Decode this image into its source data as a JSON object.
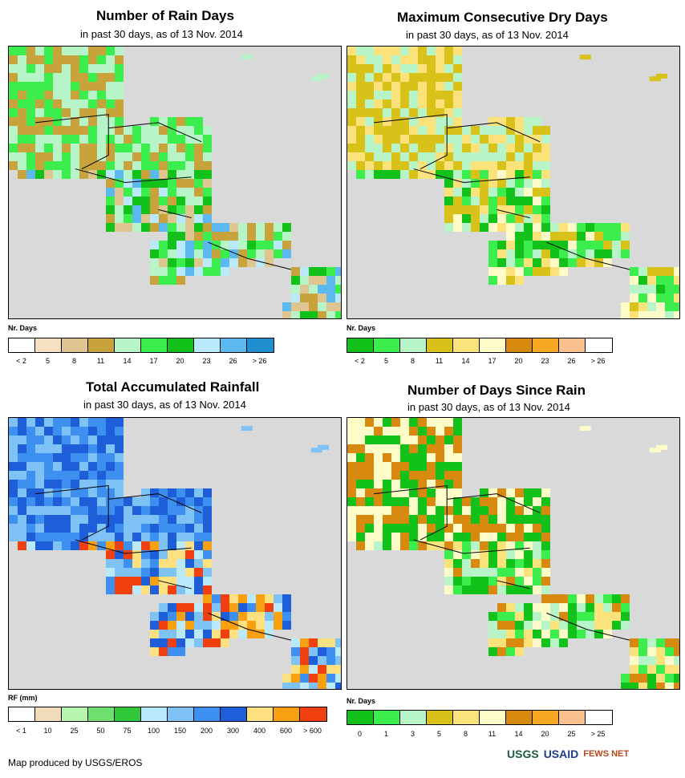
{
  "panels": [
    {
      "id": "rain-days",
      "title": "Number of Rain Days",
      "subtitle": "in past 30 days, as of 13 Nov. 2014",
      "legend_title": "Nr. Days",
      "legend_labels": [
        "< 2",
        "5",
        "8",
        "11",
        "14",
        "17",
        "20",
        "23",
        "26",
        "> 26"
      ],
      "legend_colors": [
        "#ffffff",
        "#f5e1c0",
        "#dfc58f",
        "#c8a33c",
        "#b7f5c8",
        "#3ced4e",
        "#12c21a",
        "#b9e9fb",
        "#5bb9ef",
        "#1f8fd0"
      ],
      "palette": [
        "#c8a33c",
        "#b7f5c8",
        "#3ced4e",
        "#12c21a",
        "#5bb9ef",
        "#b9e9fb",
        "#dfc58f"
      ]
    },
    {
      "id": "dry-days",
      "title": "Maximum Consecutive Dry Days",
      "subtitle": "in past 30 days, as of 13 Nov. 2014",
      "legend_title": "Nr. Days",
      "legend_labels": [
        "< 2",
        "5",
        "8",
        "11",
        "14",
        "17",
        "20",
        "23",
        "26",
        "> 26"
      ],
      "legend_colors": [
        "#12c21a",
        "#3ced4e",
        "#b7f5c8",
        "#d8c21a",
        "#fbe27a",
        "#fdfbc8",
        "#d88a10",
        "#f8a820",
        "#fac090",
        "#ffffff"
      ],
      "palette": [
        "#fbe27a",
        "#d8c21a",
        "#b7f5c8",
        "#3ced4e",
        "#12c21a",
        "#fdfbc8"
      ]
    },
    {
      "id": "rainfall",
      "title": "Total Accumulated Rainfall",
      "subtitle": "in past 30 days, as of 13 Nov. 2014",
      "legend_title": "RF (mm)",
      "legend_labels": [
        "< 1",
        "10",
        "25",
        "50",
        "75",
        "100",
        "150",
        "200",
        "300",
        "400",
        "600",
        "> 600"
      ],
      "legend_colors": [
        "#ffffff",
        "#f0dcb8",
        "#b7f5b0",
        "#6fe070",
        "#30c838",
        "#b9e9fb",
        "#7fc2f5",
        "#3d8ff0",
        "#1e5ed8",
        "#fde080",
        "#f8a010",
        "#f04010"
      ],
      "palette": [
        "#3d8ff0",
        "#7fc2f5",
        "#1e5ed8",
        "#b9e9fb",
        "#fde080",
        "#f8a010",
        "#f04010"
      ]
    },
    {
      "id": "days-since-rain",
      "title": "Number of Days Since Rain",
      "subtitle": "in past 30 days, as of 13 Nov. 2014",
      "legend_title": "Nr. Days",
      "legend_labels": [
        "0",
        "1",
        "3",
        "5",
        "8",
        "11",
        "14",
        "20",
        "25",
        "> 25"
      ],
      "legend_colors": [
        "#12c21a",
        "#3ced4e",
        "#b7f5c8",
        "#d8c21a",
        "#fbe27a",
        "#fdfbc8",
        "#d88a10",
        "#f8a820",
        "#fac090",
        "#ffffff"
      ],
      "palette": [
        "#d88a10",
        "#fdfbc8",
        "#12c21a",
        "#3ced4e",
        "#fbe27a",
        "#b7f5c8"
      ]
    }
  ],
  "footer": "Map produced by USGS/EROS",
  "logos": {
    "usgs": "USGS",
    "usaid": "USAID",
    "fews": "FEWS NET"
  },
  "colors": {
    "ocean": "#d9d9d9",
    "border": "#000000"
  }
}
